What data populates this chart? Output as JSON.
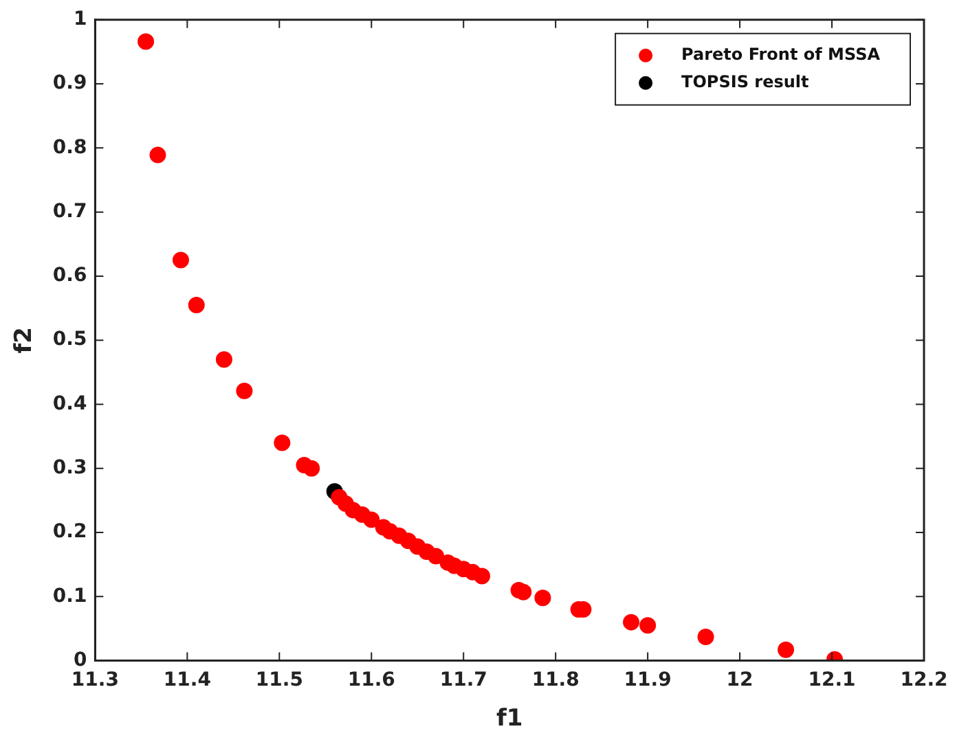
{
  "chart_data": {
    "type": "scatter",
    "xlabel": "f1",
    "ylabel": "f2",
    "xlim": [
      11.3,
      12.2
    ],
    "ylim": [
      0,
      1
    ],
    "xticks": [
      11.3,
      11.4,
      11.5,
      11.6,
      11.7,
      11.8,
      11.9,
      12,
      12.1,
      12.2
    ],
    "yticks": [
      0,
      0.1,
      0.2,
      0.3,
      0.4,
      0.5,
      0.6,
      0.7,
      0.8,
      0.9,
      1
    ],
    "grid": false,
    "legend": "top right",
    "marker": "circle",
    "series": [
      {
        "name": "Pareto Front of MSSA",
        "color": "#ff0000",
        "x": [
          11.355,
          11.368,
          11.393,
          11.41,
          11.44,
          11.462,
          11.503,
          11.527,
          11.535,
          11.565,
          11.572,
          11.58,
          11.59,
          11.6,
          11.613,
          11.62,
          11.63,
          11.64,
          11.65,
          11.66,
          11.67,
          11.683,
          11.69,
          11.7,
          11.71,
          11.72,
          11.76,
          11.765,
          11.786,
          11.825,
          11.83,
          11.882,
          11.9,
          11.963,
          12.05,
          12.103
        ],
        "values": [
          0.966,
          0.789,
          0.625,
          0.555,
          0.47,
          0.421,
          0.34,
          0.305,
          0.3,
          0.255,
          0.245,
          0.235,
          0.228,
          0.22,
          0.208,
          0.202,
          0.195,
          0.187,
          0.178,
          0.17,
          0.163,
          0.153,
          0.148,
          0.143,
          0.138,
          0.132,
          0.11,
          0.107,
          0.098,
          0.08,
          0.08,
          0.06,
          0.055,
          0.037,
          0.017,
          0.002
        ]
      },
      {
        "name": "TOPSIS result",
        "color": "#000000",
        "x": [
          11.56
        ],
        "values": [
          0.264
        ]
      }
    ]
  }
}
